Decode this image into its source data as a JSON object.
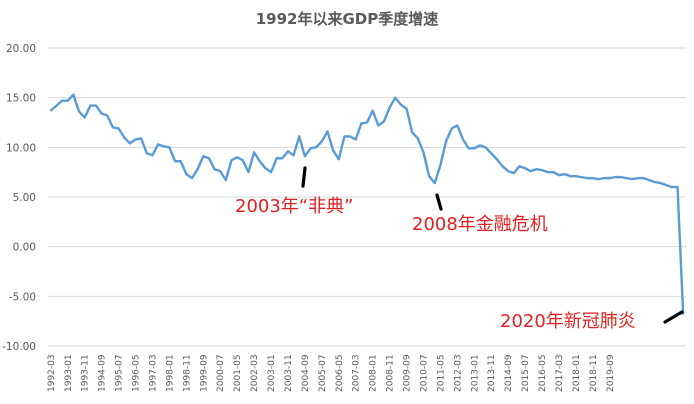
{
  "chart_data": {
    "type": "line",
    "title": "1992年以来GDP季度增速",
    "xlabel": "",
    "ylabel": "",
    "ylim": [
      -10,
      20
    ],
    "y_ticks": [
      "20.00",
      "15.00",
      "10.00",
      "5.00",
      "0.00",
      "-5.00",
      "-10.00"
    ],
    "y_tick_values": [
      20,
      15,
      10,
      5,
      0,
      -5,
      -10
    ],
    "grid": true,
    "legend": "none",
    "colors": {
      "line": "#5b9bd5",
      "grid": "#d9d9d9",
      "annotation_text": "#e32020",
      "annotation_mark": "#000000",
      "axis_text": "#595959",
      "title": "#595959"
    },
    "x_tick_labels": [
      "1992-03",
      "1993-01",
      "1993-11",
      "1994-09",
      "1995-07",
      "1996-05",
      "1997-03",
      "1998-01",
      "1998-11",
      "1999-09",
      "2000-07",
      "2001-05",
      "2002-03",
      "2003-01",
      "2003-11",
      "2004-09",
      "2005-07",
      "2006-05",
      "2007-03",
      "2008-01",
      "2008-11",
      "2009-09",
      "2010-07",
      "2011-05",
      "2012-03",
      "2013-01",
      "2013-11",
      "2014-09",
      "2015-07",
      "2016-05",
      "2017-03",
      "2018-01",
      "2018-11",
      "2019-09"
    ],
    "x_tick_every": 3,
    "series": [
      {
        "values": [
          13.7,
          14.2,
          14.7,
          14.7,
          15.3,
          13.6,
          13.0,
          14.2,
          14.2,
          13.4,
          13.2,
          12.0,
          11.9,
          11.0,
          10.4,
          10.8,
          10.9,
          9.4,
          9.2,
          10.3,
          10.1,
          10.0,
          8.6,
          8.6,
          7.3,
          6.9,
          7.8,
          9.1,
          8.9,
          7.8,
          7.6,
          6.7,
          8.7,
          9.0,
          8.7,
          7.5,
          9.5,
          8.6,
          7.9,
          7.5,
          8.9,
          8.9,
          9.6,
          9.2,
          11.1,
          9.1,
          9.9,
          10.0,
          10.6,
          11.6,
          9.7,
          8.8,
          11.1,
          11.1,
          10.8,
          12.4,
          12.5,
          13.7,
          12.2,
          12.6,
          14.0,
          15.0,
          14.3,
          13.9,
          11.5,
          10.9,
          9.5,
          7.1,
          6.4,
          8.2,
          10.6,
          11.9,
          12.2,
          10.8,
          9.9,
          9.9,
          10.2,
          10.0,
          9.4,
          8.8,
          8.1,
          7.6,
          7.4,
          8.1,
          7.9,
          7.6,
          7.8,
          7.7,
          7.5,
          7.5,
          7.2,
          7.3,
          7.1,
          7.1,
          7.0,
          6.9,
          6.9,
          6.8,
          6.9,
          6.9,
          7.0,
          7.0,
          6.9,
          6.8,
          6.9,
          6.9,
          6.7,
          6.5,
          6.4,
          6.2,
          6.0,
          6.0,
          -6.8
        ]
      }
    ],
    "annotations": [
      {
        "text": "2003年“非典”"
      },
      {
        "text": "2008年金融危机"
      },
      {
        "text": "2020年新冠肺炎"
      }
    ]
  }
}
